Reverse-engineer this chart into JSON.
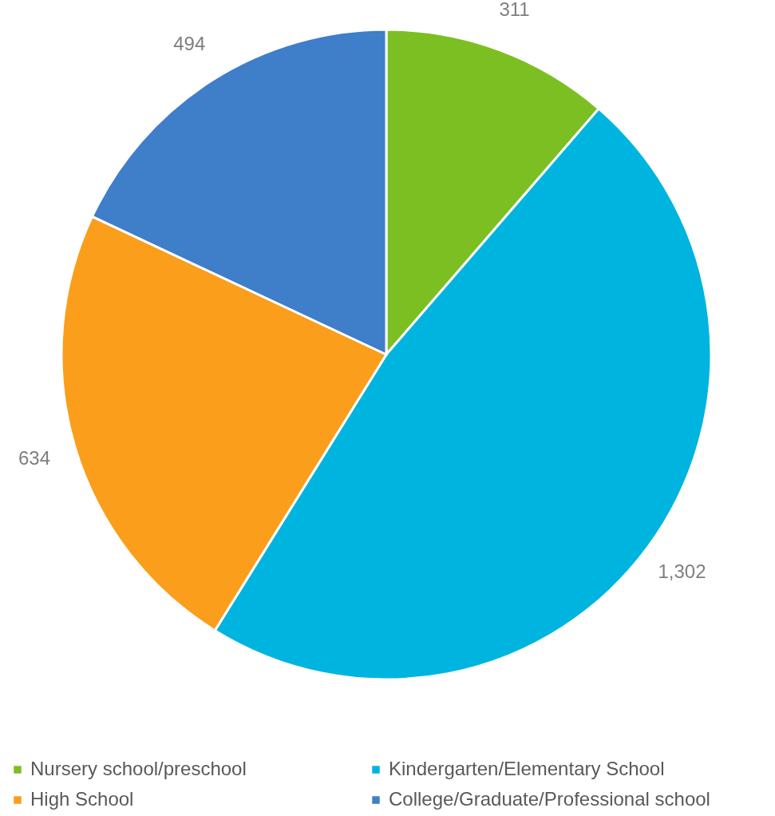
{
  "chart_data": {
    "type": "pie",
    "categories": [
      "Nursery school/preschool",
      "Kindergarten/Elementary School",
      "High School",
      "College/Graduate/Professional school"
    ],
    "values": [
      311,
      1302,
      634,
      494
    ],
    "colors": [
      "#7cbf22",
      "#00b4e0",
      "#fa9e1b",
      "#3f7ec8"
    ],
    "value_labels": [
      "311",
      "1,302",
      "634",
      "494"
    ],
    "legend": "bottom"
  }
}
